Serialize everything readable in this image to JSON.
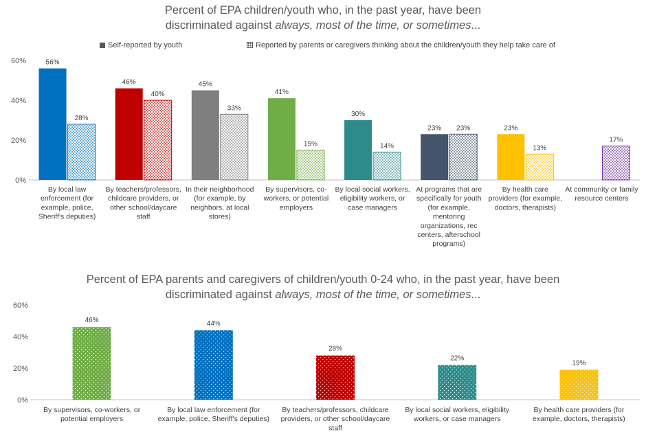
{
  "chart_data": [
    {
      "type": "bar",
      "title": "Percent of EPA children/youth who, in the past year, have been",
      "title_line2_prefix": "discriminated against ",
      "title_line2_emph": "always, most of the time, or sometimes",
      "title_line2_suffix": "...",
      "legend_position": "top",
      "ylim": [
        0,
        60
      ],
      "yticks": [
        "0%",
        "20%",
        "40%",
        "60%"
      ],
      "grid": false,
      "categories": [
        "By local law enforcement (for example, police, Sheriff's deputies)",
        "By teachers/professors, childcare providers, or other school/daycare staff",
        "In their neighborhood (for example, by neighbors, at local stores)",
        "By supervisors, co-workers, or potential employers",
        "By local social workers, eligibility workers, or case managers",
        "At programs that are specifically for youth (for example, mentoring organizations, rec centers, afterschool programs)",
        "By health care providers (for example, doctors, therapists)",
        "At community or family resource centers"
      ],
      "category_lines": [
        [
          "By local law",
          "enforcement (for",
          "example, police,",
          "Sheriff's deputies)"
        ],
        [
          "By teachers/professors,",
          "childcare providers, or",
          "other school/daycare",
          "staff"
        ],
        [
          "In their neighborhood",
          "(for example, by",
          "neighbors, at local",
          "stores)"
        ],
        [
          "By supervisors, co-",
          "workers, or potential",
          "employers"
        ],
        [
          "By local social workers,",
          "eligibility workers, or",
          "case managers"
        ],
        [
          "At programs that are",
          "specifically for youth",
          "(for example,",
          "mentoring",
          "organizations, rec",
          "centers, afterschool",
          "programs)"
        ],
        [
          "By health care",
          "providers (for example,",
          "doctors, therapists)"
        ],
        [
          "At community or family",
          "resource centers"
        ]
      ],
      "series": [
        {
          "name": "Self-reported by youth",
          "style": "solid",
          "values": [
            56,
            46,
            45,
            41,
            30,
            23,
            23,
            null
          ],
          "labels": [
            "56%",
            "46%",
            "45%",
            "41%",
            "30%",
            "23%",
            "23%",
            ""
          ]
        },
        {
          "name": "Reported by parents or caregivers thinking about the children/youth they help take care of",
          "style": "dotted",
          "values": [
            28,
            40,
            33,
            15,
            14,
            23,
            13,
            17
          ],
          "labels": [
            "28%",
            "40%",
            "33%",
            "15%",
            "14%",
            "23%",
            "13%",
            "17%"
          ]
        }
      ],
      "colors": [
        "#0070C0",
        "#C00000",
        "#7F7F7F",
        "#70AD47",
        "#2E8B8B",
        "#44546A",
        "#FFC000",
        "#7030A0"
      ]
    },
    {
      "type": "bar",
      "title": "Percent of EPA parents and caregivers of children/youth 0-24 who, in the past year, have been",
      "title_line2_prefix": "discriminated against ",
      "title_line2_emph": "always, most of the time, or sometimes",
      "title_line2_suffix": "...",
      "ylim": [
        0,
        60
      ],
      "yticks": [
        "0%",
        "20%",
        "40%",
        "60%"
      ],
      "grid": false,
      "categories": [
        "By supervisors, co-workers, or potential employers",
        "By local law enforcement (for example, police, Sheriff's deputies)",
        "By teachers/professors, childcare providers, or other school/daycare staff",
        "By local social workers, eligibility workers, or case managers",
        "By health care providers (for example, doctors, therapists)"
      ],
      "category_lines": [
        [
          "By supervisors, co-workers, or",
          "potential employers"
        ],
        [
          "By local law enforcement (for",
          "example, police, Sheriff's deputies)"
        ],
        [
          "By teachers/professors, childcare",
          "providers, or other school/daycare",
          "staff"
        ],
        [
          "By local social workers, eligibility",
          "workers, or case managers"
        ],
        [
          "By health care providers (for",
          "example, doctors, therapists)"
        ]
      ],
      "values": [
        46,
        44,
        28,
        22,
        19
      ],
      "labels": [
        "46%",
        "44%",
        "28%",
        "22%",
        "19%"
      ],
      "colors": [
        "#70AD47",
        "#0070C0",
        "#C00000",
        "#2E8B8B",
        "#FFC000"
      ]
    }
  ]
}
